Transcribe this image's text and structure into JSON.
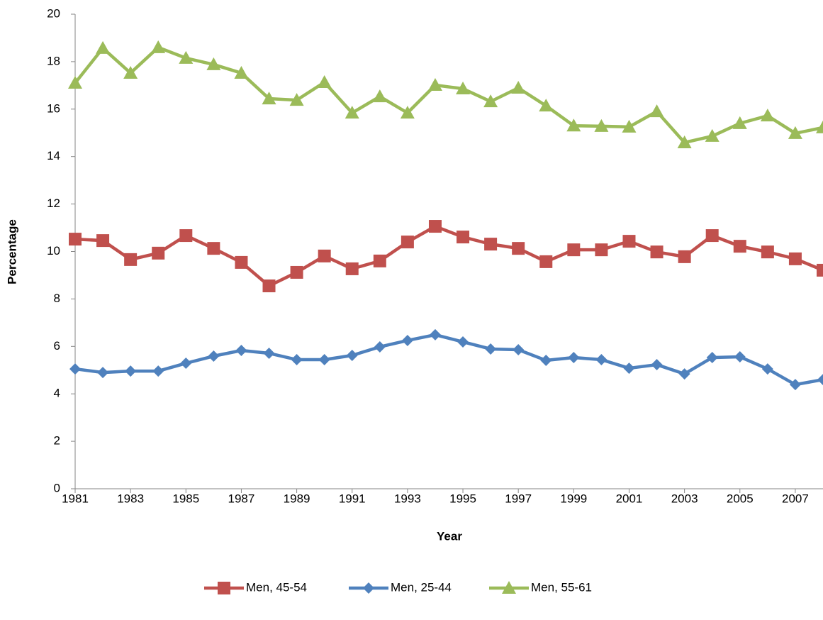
{
  "chart_data": {
    "type": "line",
    "x": [
      1981,
      1982,
      1983,
      1984,
      1985,
      1986,
      1987,
      1988,
      1989,
      1990,
      1991,
      1992,
      1993,
      1994,
      1995,
      1996,
      1997,
      1998,
      1999,
      2000,
      2001,
      2002,
      2003,
      2004,
      2005,
      2006,
      2007,
      2008
    ],
    "series": [
      {
        "name": "Men, 45-54",
        "color": "#c0504d",
        "marker": "square",
        "values": [
          10.52,
          10.46,
          9.66,
          9.93,
          10.67,
          10.13,
          9.54,
          8.55,
          9.12,
          9.81,
          9.27,
          9.6,
          10.4,
          11.06,
          10.61,
          10.31,
          10.13,
          9.57,
          10.07,
          10.07,
          10.43,
          9.98,
          9.78,
          10.67,
          10.22,
          9.98,
          9.69,
          9.21
        ]
      },
      {
        "name": "Men, 25-44",
        "color": "#4f81bd",
        "marker": "diamond",
        "values": [
          5.05,
          4.9,
          4.96,
          4.96,
          5.29,
          5.59,
          5.83,
          5.71,
          5.44,
          5.44,
          5.62,
          5.98,
          6.25,
          6.49,
          6.19,
          5.89,
          5.86,
          5.41,
          5.53,
          5.44,
          5.08,
          5.23,
          4.84,
          5.53,
          5.56,
          5.05,
          4.39,
          4.6
        ]
      },
      {
        "name": "Men, 55-61",
        "color": "#9bbb59",
        "marker": "triangle",
        "values": [
          17.1,
          18.57,
          17.52,
          18.6,
          18.15,
          17.88,
          17.52,
          16.44,
          16.38,
          17.13,
          15.84,
          16.53,
          15.84,
          17.01,
          16.86,
          16.32,
          16.89,
          16.14,
          15.3,
          15.28,
          15.25,
          15.9,
          14.59,
          14.86,
          15.4,
          15.72,
          14.98,
          15.22
        ]
      }
    ],
    "xlabel": "Year",
    "ylabel": "Percentage",
    "xlim": [
      1981,
      2008
    ],
    "xticks": [
      1981,
      1983,
      1985,
      1987,
      1989,
      1991,
      1993,
      1995,
      1997,
      1999,
      2001,
      2003,
      2005,
      2007
    ],
    "ylim": [
      0,
      20
    ],
    "yticks": [
      0,
      2,
      4,
      6,
      8,
      10,
      12,
      14,
      16,
      18,
      20
    ],
    "legend": "bottom"
  }
}
